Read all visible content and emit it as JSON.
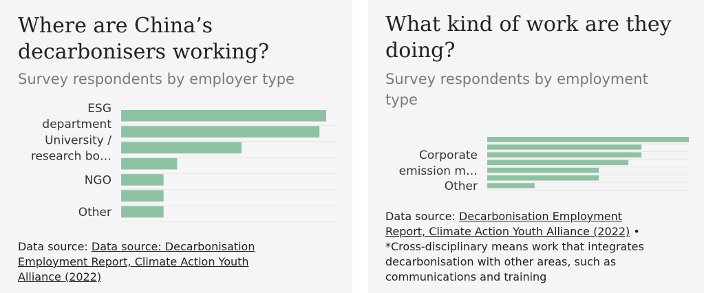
{
  "panels": [
    {
      "title_line1": "Where are China’s",
      "title_line2": "decarbonisers working?",
      "subtitle": "Survey respondents by employer type",
      "source_prefix": "Data source:",
      "source_link_line1": "Data source: Decarbonisation",
      "source_link_line2": "Employment Report, Climate Action Youth",
      "source_link_line3": "Alliance (2022)"
    },
    {
      "title_line1": "What kind of work are they",
      "title_line2": "doing?",
      "subtitle_line1": "Survey respondents by employment",
      "subtitle_line2": "type",
      "source_prefix": "Data source:",
      "source_link_line1": "Decarbonisation Employment",
      "source_link_line2": "Report, Climate Action Youth Alliance (2022)",
      "source_suffix": "•",
      "note_line1": "*Cross-disciplinary means work that integrates",
      "note_line2": "decarbonisation with other areas, such as",
      "note_line3": "communications and training"
    }
  ],
  "chart_data": [
    {
      "type": "bar",
      "orientation": "horizontal",
      "title": "Where are China’s decarbonisers working?",
      "subtitle": "Survey respondents by employer type",
      "visible_labels": [
        {
          "index": 0,
          "lines": [
            "ESG",
            "department"
          ]
        },
        {
          "index": 2,
          "lines": [
            "University /",
            "research bo…"
          ]
        },
        {
          "index": 4,
          "lines": [
            "NGO"
          ]
        },
        {
          "index": 6,
          "lines": [
            "Other"
          ]
        }
      ],
      "values": [
        100,
        96.7,
        58.7,
        27.3,
        20.7,
        20.7,
        20.7
      ],
      "color": "#8fc2a2",
      "grid": true
    },
    {
      "type": "bar",
      "orientation": "horizontal",
      "title": "What kind of work are they doing?",
      "subtitle": "Survey respondents by employment type",
      "visible_labels": [
        {
          "index": 3,
          "lines": [
            "Corporate",
            "emission m…"
          ]
        },
        {
          "index": 6,
          "lines": [
            "Other"
          ]
        }
      ],
      "values": [
        100,
        76.5,
        76.5,
        70,
        55.3,
        55.3,
        23.5
      ],
      "color": "#8fc2a2",
      "grid": true
    }
  ]
}
